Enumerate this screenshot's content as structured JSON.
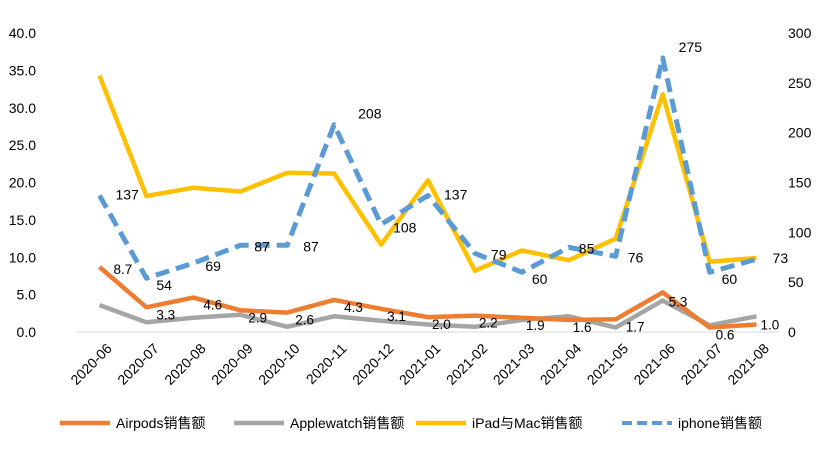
{
  "chart_data": {
    "type": "line",
    "title": "",
    "xlabel": "",
    "ylabel": "",
    "y2label": "",
    "categories": [
      "2020-06",
      "2020-07",
      "2020-08",
      "2020-09",
      "2020-10",
      "2020-11",
      "2020-12",
      "2021-01",
      "2021-02",
      "2021-03",
      "2021-04",
      "2021-05",
      "2021-06",
      "2021-07",
      "2021-08"
    ],
    "ylim": [
      0,
      40
    ],
    "y2lim": [
      0,
      300
    ],
    "y_ticks": [
      "0.0",
      "5.0",
      "10.0",
      "15.0",
      "20.0",
      "25.0",
      "30.0",
      "35.0",
      "40.0"
    ],
    "y2_ticks": [
      "0",
      "50",
      "100",
      "150",
      "200",
      "250",
      "300"
    ],
    "grid": false,
    "legend_position": "bottom",
    "series": [
      {
        "name": "Airpods销售额",
        "axis": "left",
        "color": "#ED7D31",
        "style": "solid",
        "values": [
          8.7,
          3.3,
          4.6,
          2.9,
          2.6,
          4.3,
          3.1,
          2.0,
          2.2,
          1.9,
          1.6,
          1.7,
          5.3,
          0.6,
          1.0
        ],
        "labels": [
          "8.7",
          "3.3",
          "4.6",
          "2.9",
          "2.6",
          "4.3",
          "3.1",
          "2.0",
          "2.2",
          "1.9",
          "1.6",
          "1.7",
          "5.3",
          "0.6",
          "1.0"
        ]
      },
      {
        "name": "Applewatch销售额",
        "axis": "left",
        "color": "#A5A5A5",
        "style": "solid",
        "values": [
          3.6,
          1.3,
          1.9,
          2.3,
          0.7,
          2.1,
          1.5,
          1.0,
          0.7,
          1.6,
          2.1,
          0.6,
          4.2,
          0.9,
          2.1
        ],
        "labels": []
      },
      {
        "name": "iPad与Mac销售额",
        "axis": "left",
        "color": "#FFC000",
        "style": "solid",
        "values": [
          34.3,
          18.2,
          19.3,
          18.8,
          21.3,
          21.2,
          11.7,
          20.3,
          8.2,
          10.9,
          9.6,
          12.5,
          31.8,
          9.4,
          9.9
        ],
        "labels": []
      },
      {
        "name": "iphone销售额",
        "axis": "right",
        "color": "#5B9BD5",
        "style": "dashed",
        "values": [
          137,
          54,
          69,
          87,
          87,
          208,
          108,
          137,
          79,
          60,
          85,
          76,
          275,
          60,
          73
        ],
        "labels": [
          "137",
          "54",
          "69",
          "87",
          "87",
          "208",
          "108",
          "137",
          "79",
          "60",
          "85",
          "76",
          "275",
          "60",
          "73"
        ]
      }
    ]
  }
}
